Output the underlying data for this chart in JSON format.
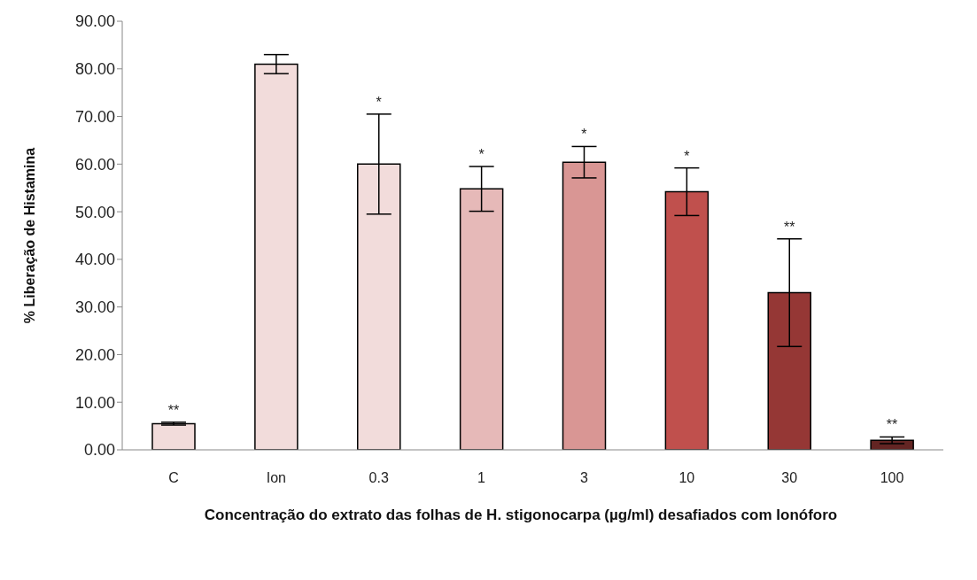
{
  "chart_data": {
    "type": "bar",
    "ylabel": "% Liberação de Histamina",
    "xlabel": "Concentração do extrato das folhas de H. stigonocarpa (µg/ml) desafiados com Ionóforo",
    "categories": [
      "C",
      "Ion",
      "0.3",
      "1",
      "3",
      "10",
      "30",
      "100"
    ],
    "values": [
      5.5,
      81,
      60,
      54.8,
      60.4,
      54.2,
      33,
      2
    ],
    "errors": [
      0.3,
      2,
      10.5,
      4.7,
      3.3,
      5,
      11.3,
      0.7
    ],
    "colors": [
      "#f2dcdb",
      "#f2dcdb",
      "#f2dcdb",
      "#e6b9b8",
      "#d99694",
      "#c0504d",
      "#953735",
      "#632523"
    ],
    "ylim": [
      0,
      90
    ],
    "yticks": [
      {
        "value": 0,
        "label": "0.00"
      },
      {
        "value": 10,
        "label": "10.00"
      },
      {
        "value": 20,
        "label": "20.00"
      },
      {
        "value": 30,
        "label": "30.00"
      },
      {
        "value": 40,
        "label": "40.00"
      },
      {
        "value": 50,
        "label": "50.00"
      },
      {
        "value": 60,
        "label": "60.00"
      },
      {
        "value": 70,
        "label": "70.00"
      },
      {
        "value": 80,
        "label": "80.00"
      },
      {
        "value": 90,
        "label": "90.00"
      }
    ],
    "annotations": [
      {
        "text": "**",
        "x": "C",
        "y": 5.8
      },
      {
        "text": "*",
        "x": "0.3",
        "y": 70.5
      },
      {
        "text": "*",
        "x": "1",
        "y": 59.5
      },
      {
        "text": "*",
        "x": "3",
        "y": 63.7
      },
      {
        "text": "*",
        "x": "10",
        "y": 59.2
      },
      {
        "text": "**",
        "x": "30",
        "y": 44.3
      },
      {
        "text": "**",
        "x": "100",
        "y": 2.7
      }
    ]
  }
}
